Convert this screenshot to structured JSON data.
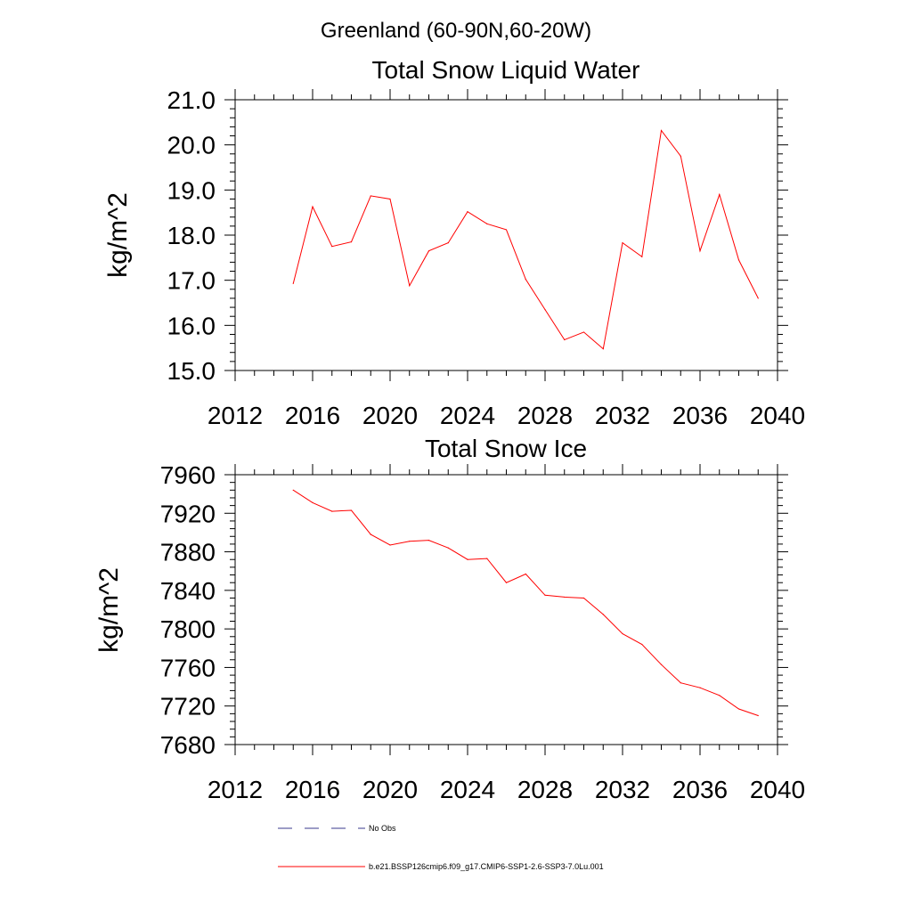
{
  "figure_title": "Greenland (60-90N,60-20W)",
  "chart_data": [
    {
      "type": "line",
      "title": "Total Snow Liquid Water",
      "xlabel": "",
      "ylabel": "kg/m^2",
      "xlim": [
        2012,
        2040
      ],
      "ylim": [
        15.0,
        21.0
      ],
      "xticks": [
        "2012",
        "2016",
        "2020",
        "2024",
        "2028",
        "2032",
        "2036",
        "2040"
      ],
      "yticks": [
        "15.0",
        "16.0",
        "17.0",
        "18.0",
        "19.0",
        "20.0",
        "21.0"
      ],
      "grid": false,
      "x": [
        2015,
        2016,
        2017,
        2018,
        2019,
        2020,
        2021,
        2022,
        2023,
        2024,
        2025,
        2026,
        2027,
        2028,
        2029,
        2030,
        2031,
        2032,
        2033,
        2034,
        2035,
        2036,
        2037,
        2038,
        2039
      ],
      "series": [
        {
          "name": "b.e21.BSSP126cmip6.f09_g17.CMIP6-SSP1-2.6-SSP3-7.0Lu.001",
          "color": "#ff0000",
          "values": [
            16.93,
            18.63,
            17.75,
            17.85,
            18.87,
            18.8,
            16.88,
            17.65,
            17.83,
            18.52,
            18.25,
            18.12,
            17.02,
            16.35,
            15.68,
            15.85,
            15.48,
            17.83,
            17.52,
            20.32,
            19.75,
            17.65,
            18.9,
            17.45,
            16.6
          ]
        }
      ]
    },
    {
      "type": "line",
      "title": "Total Snow Ice",
      "xlabel": "",
      "ylabel": "kg/m^2",
      "xlim": [
        2012,
        2040
      ],
      "ylim": [
        7680,
        7960
      ],
      "xticks": [
        "2012",
        "2016",
        "2020",
        "2024",
        "2028",
        "2032",
        "2036",
        "2040"
      ],
      "yticks": [
        "7680",
        "7720",
        "7760",
        "7800",
        "7840",
        "7880",
        "7920",
        "7960"
      ],
      "grid": false,
      "x": [
        2015,
        2016,
        2017,
        2018,
        2019,
        2020,
        2021,
        2022,
        2023,
        2024,
        2025,
        2026,
        2027,
        2028,
        2029,
        2030,
        2031,
        2032,
        2033,
        2034,
        2035,
        2036,
        2037,
        2038,
        2039
      ],
      "series": [
        {
          "name": "b.e21.BSSP126cmip6.f09_g17.CMIP6-SSP1-2.6-SSP3-7.0Lu.001",
          "color": "#ff0000",
          "values": [
            7944,
            7931,
            7922,
            7923,
            7898,
            7887,
            7891,
            7892,
            7884,
            7872,
            7873,
            7848,
            7857,
            7835,
            7833,
            7832,
            7815,
            7795,
            7784,
            7763,
            7744,
            7739,
            7731,
            7717,
            7710
          ]
        }
      ]
    }
  ],
  "legend": {
    "placement": "bottom",
    "items": [
      {
        "label": "No Obs",
        "color": "#3a3a8c",
        "style": "dashed"
      },
      {
        "label": "b.e21.BSSP126cmip6.f09_g17.CMIP6-SSP1-2.6-SSP3-7.0Lu.001",
        "color": "#ff0000",
        "style": "solid"
      }
    ]
  }
}
